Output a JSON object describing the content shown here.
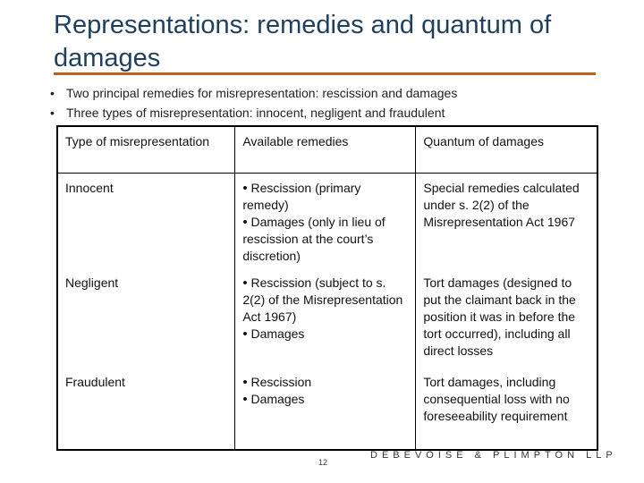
{
  "slide": {
    "title": "Representations: remedies and quantum of damages",
    "bullets": [
      "Two principal remedies for misrepresentation: rescission and damages",
      "Three types of misrepresentation: innocent, negligent and fraudulent"
    ],
    "bullet_glyph": "•"
  },
  "table": {
    "headers": [
      "Type of misrepresentation",
      "Available remedies",
      "Quantum of damages"
    ],
    "rows": [
      {
        "type": "Innocent",
        "remedies": [
          "Rescission (primary remedy)",
          "Damages (only in lieu of rescission at the court’s discretion)"
        ],
        "quantum": "Special remedies calculated under s. 2(2) of the Misrepresentation Act 1967"
      },
      {
        "type": "Negligent",
        "remedies": [
          "Rescission (subject to s. 2(2) of the Misrepresentation Act 1967)",
          "Damages"
        ],
        "quantum": "Tort damages (designed to put the claimant back in the position it was in before the tort occurred), including all direct losses"
      },
      {
        "type": "Fraudulent",
        "remedies": [
          "Rescission",
          "Damages"
        ],
        "quantum": "Tort damages, including consequential loss with no foreseeability requirement"
      }
    ]
  },
  "footer": {
    "page_number": "12",
    "brand": "DEBEVOISE & PLIMPTON LLP"
  },
  "colors": {
    "title": "#1f3f5f",
    "rule": "#c0601e"
  }
}
